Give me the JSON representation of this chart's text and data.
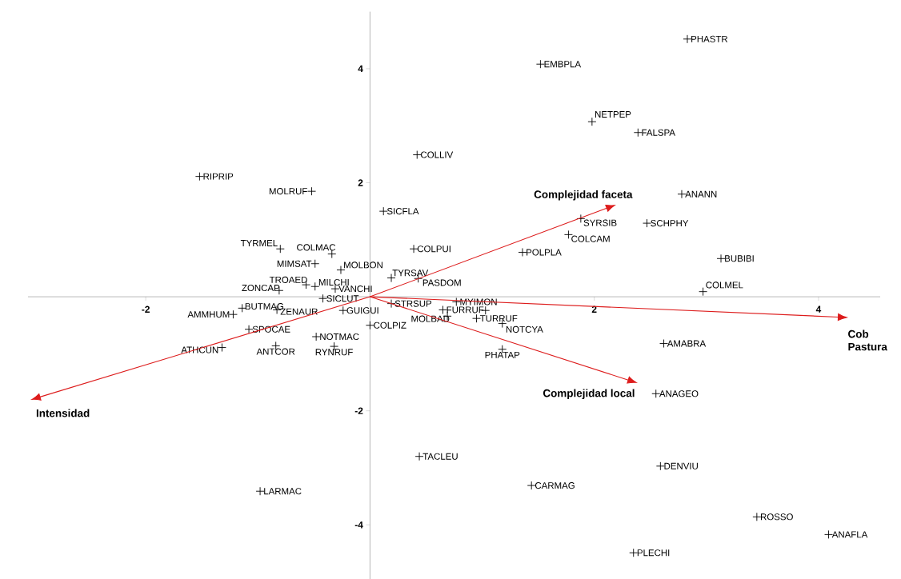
{
  "chart_data": {
    "type": "scatter",
    "xlim": [
      -3.05,
      4.55
    ],
    "ylim": [
      -4.95,
      5.0
    ],
    "xticks": [
      -2,
      2,
      4
    ],
    "yticks": [
      -4,
      -2,
      2,
      4
    ],
    "series": [
      {
        "color": "#000000",
        "marker": "cross",
        "x": [
          2.83,
          1.52,
          1.98,
          2.39,
          0.42,
          -1.52,
          -0.52,
          0.12,
          2.78,
          1.88,
          2.47,
          1.77,
          1.36,
          3.13,
          2.97,
          -0.8,
          -0.34,
          -0.49,
          -0.26,
          -0.57,
          -0.49,
          -0.31,
          -0.81,
          0.19,
          0.43,
          -0.42,
          -1.14,
          -1.22,
          -0.83,
          -0.24,
          -1.08,
          0.0,
          -0.48,
          -1.32,
          -0.84,
          -0.32,
          0.39,
          0.19,
          0.77,
          0.65,
          0.69,
          0.95,
          1.18,
          1.18,
          2.62,
          2.55,
          2.59,
          1.44,
          3.45,
          4.09,
          2.35,
          0.44,
          -0.98,
          1.03
        ],
        "values": [
          4.52,
          4.08,
          3.07,
          2.88,
          2.49,
          2.11,
          1.85,
          1.5,
          1.8,
          1.37,
          1.29,
          1.09,
          0.78,
          0.67,
          0.09,
          0.84,
          0.75,
          0.58,
          0.47,
          0.21,
          0.18,
          0.14,
          0.11,
          0.33,
          0.32,
          -0.03,
          -0.2,
          -0.31,
          -0.23,
          -0.24,
          -0.57,
          -0.5,
          -0.7,
          -0.89,
          -0.86,
          -0.87,
          0.84,
          -0.12,
          -0.09,
          -0.23,
          -0.34,
          -0.38,
          -0.47,
          -0.92,
          -0.82,
          -1.7,
          -2.97,
          -3.31,
          -3.86,
          -4.17,
          -4.49,
          -2.8,
          -3.41,
          -0.24
        ]
      }
    ],
    "annotations": [
      {
        "text": "PHASTR",
        "x": 2.83,
        "y": 4.52
      },
      {
        "text": "EMBPLA",
        "x": 1.52,
        "y": 4.08
      },
      {
        "text": "NETPEP",
        "x": 1.98,
        "y": 3.07
      },
      {
        "text": "FALSPA",
        "x": 2.39,
        "y": 2.88
      },
      {
        "text": "COLLIV",
        "x": 0.42,
        "y": 2.49
      },
      {
        "text": "RIPRIP",
        "x": -1.52,
        "y": 2.11
      },
      {
        "text": "MOLRUF",
        "x": -0.52,
        "y": 1.85
      },
      {
        "text": "SICFLA",
        "x": 0.12,
        "y": 1.5
      },
      {
        "text": "ANANN",
        "x": 2.78,
        "y": 1.8
      },
      {
        "text": "SYRSIB",
        "x": 1.88,
        "y": 1.37
      },
      {
        "text": "SCHPHY",
        "x": 2.47,
        "y": 1.29
      },
      {
        "text": "COLCAM",
        "x": 1.77,
        "y": 1.09
      },
      {
        "text": "POLPLA",
        "x": 1.36,
        "y": 0.78
      },
      {
        "text": "BUBIBI",
        "x": 3.13,
        "y": 0.67
      },
      {
        "text": "COLMEL",
        "x": 2.97,
        "y": 0.09
      },
      {
        "text": "TYRMEL",
        "x": -0.8,
        "y": 0.84
      },
      {
        "text": "COLMAC",
        "x": -0.34,
        "y": 0.75
      },
      {
        "text": "MIMSAT",
        "x": -0.49,
        "y": 0.58
      },
      {
        "text": "MOLBON",
        "x": -0.26,
        "y": 0.47
      },
      {
        "text": "TROAED",
        "x": -0.57,
        "y": 0.21
      },
      {
        "text": "MILCHI",
        "x": -0.49,
        "y": 0.18
      },
      {
        "text": "VANCHI",
        "x": -0.31,
        "y": 0.14
      },
      {
        "text": "ZONCAP",
        "x": -0.81,
        "y": 0.11
      },
      {
        "text": "TYRSAV",
        "x": 0.19,
        "y": 0.33
      },
      {
        "text": "PASDOM",
        "x": 0.43,
        "y": 0.32
      },
      {
        "text": "SICLUT",
        "x": -0.42,
        "y": -0.03
      },
      {
        "text": "BUTMAG",
        "x": -1.14,
        "y": -0.2
      },
      {
        "text": "AMMHUM",
        "x": -1.22,
        "y": -0.31
      },
      {
        "text": "ZENAUR",
        "x": -0.83,
        "y": -0.23
      },
      {
        "text": "GUIGUI",
        "x": -0.24,
        "y": -0.24
      },
      {
        "text": "SPOCAE",
        "x": -1.08,
        "y": -0.57
      },
      {
        "text": "COLPIZ",
        "x": 0.0,
        "y": -0.5
      },
      {
        "text": "NOTMAC",
        "x": -0.48,
        "y": -0.7
      },
      {
        "text": "ATHCUN",
        "x": -1.32,
        "y": -0.89
      },
      {
        "text": "ANTCOR",
        "x": -0.84,
        "y": -0.86
      },
      {
        "text": "RYNRUF",
        "x": -0.32,
        "y": -0.87
      },
      {
        "text": "COLPUI",
        "x": 0.39,
        "y": 0.84
      },
      {
        "text": "STRSUP",
        "x": 0.19,
        "y": -0.12
      },
      {
        "text": "MYIMON",
        "x": 0.77,
        "y": -0.09
      },
      {
        "text": "FURRUF",
        "x": 0.65,
        "y": -0.23
      },
      {
        "text": "MOLBAD",
        "x": 0.69,
        "y": -0.34
      },
      {
        "text": "TURRUF",
        "x": 0.95,
        "y": -0.38
      },
      {
        "text": "NOTCYA",
        "x": 1.18,
        "y": -0.47
      },
      {
        "text": "PHATAP",
        "x": 1.18,
        "y": -0.92
      },
      {
        "text": "AMABRA",
        "x": 2.62,
        "y": -0.82
      },
      {
        "text": "ANAGEO",
        "x": 2.55,
        "y": -1.7
      },
      {
        "text": "DENVIU",
        "x": 2.59,
        "y": -2.97
      },
      {
        "text": "CARMAG",
        "x": 1.44,
        "y": -3.31
      },
      {
        "text": "ROSSO",
        "x": 3.45,
        "y": -3.86
      },
      {
        "text": "ANAFLA",
        "x": 4.09,
        "y": -4.17
      },
      {
        "text": "PLECHI",
        "x": 2.35,
        "y": -4.49
      },
      {
        "text": "TACLEU",
        "x": 0.44,
        "y": -2.8
      },
      {
        "text": "LARMAC",
        "x": -0.98,
        "y": -3.41
      },
      "Complejidad faceta",
      "Complejidad local",
      "Cob Pastura",
      "Intensidad"
    ]
  }
}
